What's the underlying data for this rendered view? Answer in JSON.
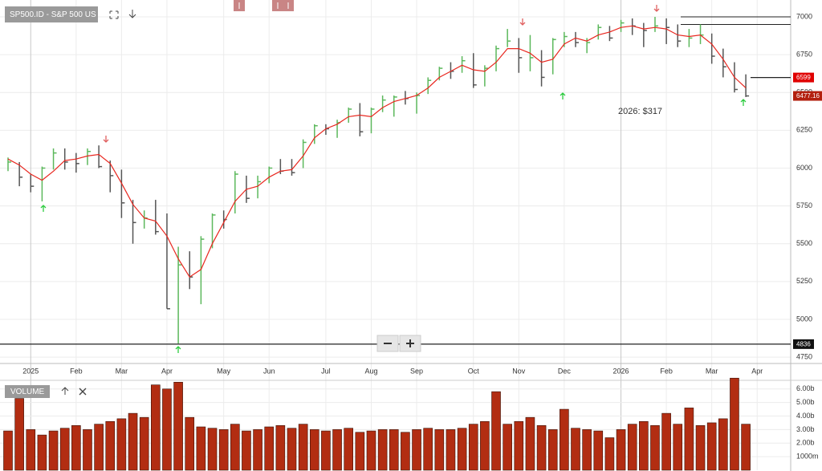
{
  "chart_data": [
    {
      "type": "ohlc",
      "title": "SP500.ID - S&P 500 US",
      "annotation": "2026: $317",
      "categories": [
        null,
        null,
        "2025",
        null,
        null,
        null,
        "Feb",
        null,
        null,
        null,
        "Mar",
        null,
        null,
        null,
        "Apr",
        null,
        null,
        null,
        null,
        "May",
        null,
        null,
        null,
        "Jun",
        null,
        null,
        null,
        null,
        "Jul",
        null,
        null,
        null,
        "Aug",
        null,
        null,
        null,
        "Sep",
        null,
        null,
        null,
        null,
        "Oct",
        null,
        null,
        null,
        "Nov",
        null,
        null,
        null,
        "Dec",
        null,
        null,
        null,
        null,
        "2026",
        null,
        null,
        null,
        "Feb",
        null,
        null,
        null,
        "Mar",
        null,
        null,
        null,
        "Apr"
      ],
      "high": [
        6070,
        6040,
        5960,
        6010,
        6130,
        6130,
        6100,
        6130,
        6150,
        6050,
        5990,
        5790,
        5720,
        5790,
        5700,
        5480,
        5450,
        5550,
        5700,
        5720,
        5980,
        5950,
        5950,
        6010,
        6060,
        6060,
        6190,
        6290,
        6290,
        6320,
        6400,
        6430,
        6400,
        6480,
        6480,
        6510,
        6500,
        6600,
        6670,
        6700,
        6740,
        6760,
        6680,
        6810,
        6920,
        6860,
        6880,
        6780,
        6860,
        6900,
        6900,
        6860,
        6950,
        6940,
        6980,
        6990,
        6960,
        7000,
        6990,
        6950,
        6920,
        6950,
        6890,
        6790,
        6700,
        6620,
        null
      ],
      "low": [
        5980,
        5880,
        5840,
        5780,
        5990,
        5990,
        5970,
        6020,
        6000,
        5840,
        5670,
        5500,
        5600,
        5560,
        5070,
        4840,
        5200,
        5100,
        5470,
        5600,
        5700,
        5770,
        5800,
        5900,
        5960,
        5950,
        6000,
        6160,
        6220,
        6200,
        6300,
        6210,
        6230,
        6370,
        6340,
        6420,
        6360,
        6490,
        6580,
        6590,
        6630,
        6530,
        6540,
        6640,
        6800,
        6630,
        6640,
        6540,
        6620,
        6800,
        6800,
        6760,
        6850,
        6840,
        6900,
        6880,
        6800,
        6900,
        6820,
        6800,
        6800,
        6820,
        6690,
        6600,
        6500,
        6470,
        null
      ],
      "close": [
        6040,
        5940,
        5880,
        6000,
        6100,
        6040,
        6030,
        6110,
        6010,
        5950,
        5770,
        5640,
        5670,
        5580,
        5070,
        5360,
        5280,
        5530,
        5690,
        5660,
        5960,
        5800,
        5910,
        6000,
        5980,
        5970,
        6170,
        6280,
        6260,
        6300,
        6390,
        6240,
        6390,
        6450,
        6470,
        6460,
        6480,
        6580,
        6660,
        6640,
        6710,
        6550,
        6660,
        6790,
        6840,
        6730,
        6730,
        6600,
        6850,
        6870,
        6830,
        6830,
        6930,
        6860,
        6960,
        6940,
        6910,
        6940,
        6930,
        6840,
        6860,
        6880,
        6740,
        6670,
        6520,
        6477.16,
        null
      ],
      "close_label": "6477.16",
      "ma": [
        6060,
        6020,
        5960,
        5920,
        5980,
        6050,
        6060,
        6080,
        6090,
        6030,
        5900,
        5760,
        5670,
        5650,
        5550,
        5400,
        5280,
        5330,
        5500,
        5640,
        5780,
        5860,
        5880,
        5940,
        5980,
        5990,
        6080,
        6200,
        6260,
        6290,
        6340,
        6350,
        6340,
        6400,
        6440,
        6460,
        6480,
        6530,
        6600,
        6640,
        6680,
        6650,
        6640,
        6700,
        6790,
        6790,
        6760,
        6700,
        6720,
        6820,
        6860,
        6840,
        6880,
        6900,
        6930,
        6940,
        6920,
        6930,
        6920,
        6880,
        6870,
        6880,
        6820,
        6720,
        6600,
        6530,
        null
      ],
      "ma_color": "#e8271f",
      "up_color": "#5cb85c",
      "down_color": "#555555",
      "levels": [
        {
          "value": 6599,
          "label": "6599",
          "color": "#e00000"
        },
        {
          "value": 4836,
          "label": "4836",
          "color": "#111111"
        }
      ],
      "hlines": [
        7000,
        6950
      ],
      "ylim": [
        4708,
        7085
      ],
      "yticks": [
        4750,
        5000,
        5250,
        5500,
        5750,
        6000,
        6250,
        6500,
        6750,
        7000
      ],
      "grid": true
    },
    {
      "type": "bar",
      "title": "VOLUME",
      "color": "#b22d12",
      "values": [
        2.9,
        5.3,
        3.0,
        2.6,
        2.9,
        3.1,
        3.3,
        3.0,
        3.4,
        3.6,
        3.8,
        4.2,
        3.9,
        6.3,
        6.0,
        6.5,
        3.9,
        3.2,
        3.1,
        3.0,
        3.4,
        2.9,
        3.0,
        3.2,
        3.3,
        3.1,
        3.4,
        3.0,
        2.9,
        3.0,
        3.1,
        2.8,
        2.9,
        3.0,
        3.0,
        2.8,
        3.0,
        3.1,
        3.0,
        3.0,
        3.1,
        3.4,
        3.6,
        5.8,
        3.4,
        3.6,
        3.9,
        3.3,
        3.0,
        4.5,
        3.1,
        3.0,
        2.9,
        2.4,
        3.0,
        3.4,
        3.6,
        3.3,
        4.2,
        3.4,
        4.6,
        3.3,
        3.5,
        3.8,
        6.8,
        3.4,
        null
      ],
      "ylim": [
        0,
        6.4
      ],
      "yticks": [
        {
          "value": 1,
          "label": "1000m"
        },
        {
          "value": 2,
          "label": "2.00b"
        },
        {
          "value": 3,
          "label": "3.00b"
        },
        {
          "value": 4,
          "label": "4.00b"
        },
        {
          "value": 5,
          "label": "5.00b"
        },
        {
          "value": 6,
          "label": "6.00b"
        }
      ]
    }
  ]
}
